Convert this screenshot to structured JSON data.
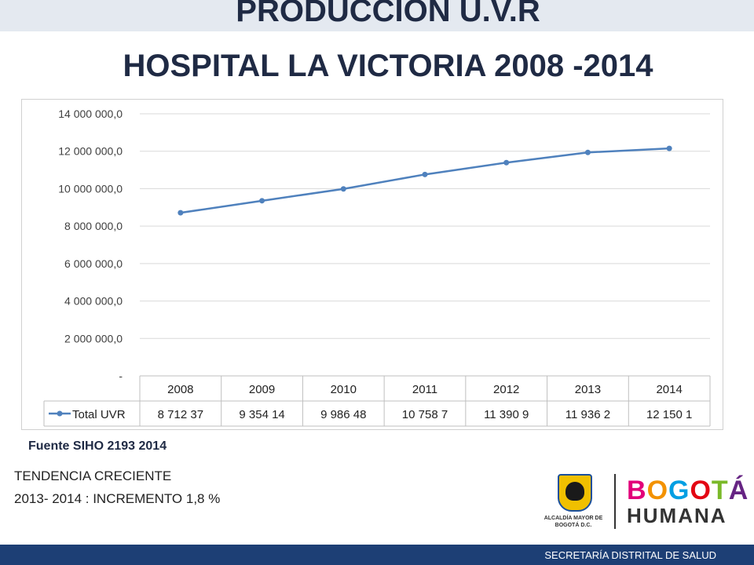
{
  "slide": {
    "title_line1": "PRODUCCION U.V.R",
    "title_line2": "HOSPITAL LA  VICTORIA  2008 -2014",
    "source": "Fuente SIHO 2193 2014",
    "trend_line1": "TENDENCIA CRECIENTE",
    "trend_line2": "2013- 2014 : INCREMENTO 1,8 %",
    "footer": "SECRETARÍA DISTRITAL DE SALUD"
  },
  "logos": {
    "alcaldia_text": "ALCALDÍA MAYOR DE BOGOTÁ D.C.",
    "bogota": [
      "B",
      "O",
      "G",
      "O",
      "T",
      "Á"
    ],
    "bogota_colors": [
      "#e2007a",
      "#f39200",
      "#009fe3",
      "#e30613",
      "#7ab929",
      "#662483"
    ],
    "humana": "HUMANA"
  },
  "chart_data": {
    "type": "line",
    "categories": [
      "2008",
      "2009",
      "2010",
      "2011",
      "2012",
      "2013",
      "2014"
    ],
    "series": [
      {
        "name": "Total UVR",
        "values": [
          8712370,
          9354140,
          9986480,
          10758700,
          11390900,
          11936200,
          12150100
        ],
        "table_labels": [
          "8 712 37",
          "9 354 14",
          "9 986 48",
          "10 758 7",
          "11 390 9",
          "11 936 2",
          "12 150 1"
        ],
        "color": "#4f81bd"
      }
    ],
    "ylim": [
      0,
      14000000
    ],
    "yticks": [
      0,
      2000000,
      4000000,
      6000000,
      8000000,
      10000000,
      12000000,
      14000000
    ],
    "ytick_labels": [
      "-",
      "2 000 000,0",
      "4 000 000,0",
      "6 000 000,0",
      "8 000 000,0",
      "10 000 000,0",
      "12 000 000,0",
      "14 000 000,0"
    ],
    "grid": true,
    "legend": "data-table"
  }
}
